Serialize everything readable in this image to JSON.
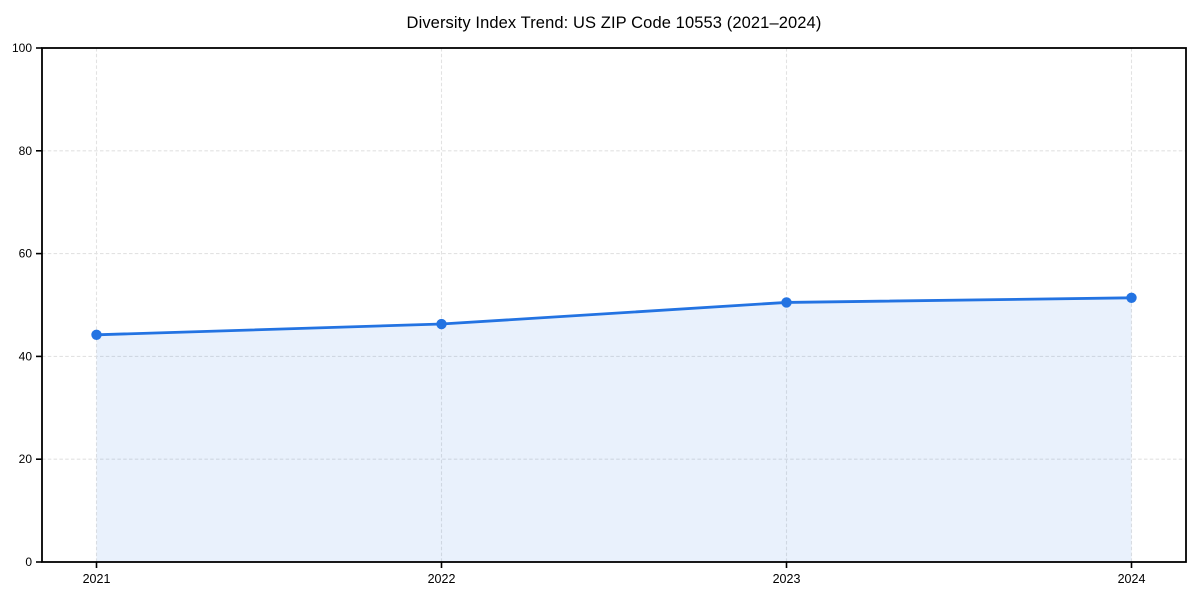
{
  "chart_data": {
    "type": "area",
    "title": "Diversity Index Trend: US ZIP Code 10553 (2021–2024)",
    "x": [
      "2021",
      "2022",
      "2023",
      "2024"
    ],
    "values": [
      44.2,
      46.3,
      50.5,
      51.4
    ],
    "xlabel": "",
    "ylabel": "",
    "ylim": [
      0,
      100
    ],
    "yticks": [
      0,
      20,
      40,
      60,
      80,
      100
    ],
    "grid": true,
    "grid_style": "dashed",
    "legend": "none",
    "colors": {
      "line": "#2373e2",
      "marker": "#2373e2",
      "fill": "#2373e2",
      "fill_opacity": 0.1,
      "grid": "#e2e2e2",
      "spine": "#000000",
      "tick_text": "#000000",
      "background": "#ffffff"
    }
  }
}
